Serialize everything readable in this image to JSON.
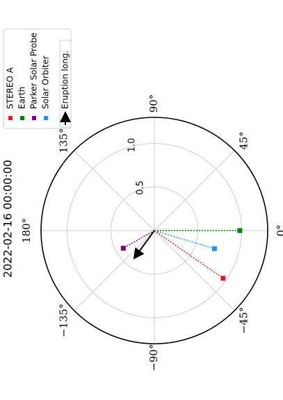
{
  "chart_data": {
    "type": "polar_scatter",
    "title": "2022-02-16 00:00:00",
    "rlim": [
      0,
      1.3
    ],
    "rticks": [
      0.5,
      {
        "value": 1,
        "label": "1.0"
      }
    ],
    "thetaticks": [
      {
        "value": 0,
        "label": "0°"
      },
      {
        "value": 45,
        "label": "45°"
      },
      {
        "value": 90,
        "label": "90°"
      },
      {
        "value": 135,
        "label": "135°"
      },
      {
        "value": 180,
        "label": "180°"
      },
      {
        "value": -135,
        "label": "−135°"
      },
      {
        "value": -90,
        "label": "−90°"
      },
      {
        "value": -45,
        "label": "−45°"
      }
    ],
    "grid": true,
    "series": [
      {
        "name": "STEREO A",
        "color": "#e41a1c",
        "r": [
          0.96
        ],
        "theta": [
          -34.8
        ]
      },
      {
        "name": "Earth",
        "color": "#008000",
        "r": [
          0.98
        ],
        "theta": [
          0
        ]
      },
      {
        "name": "Parker Solar Probe",
        "color": "#800080",
        "r": [
          0.41
        ],
        "theta": [
          -150.4
        ]
      },
      {
        "name": "Solar Orbiter",
        "color": "#1e90ff",
        "r": [
          0.72
        ],
        "theta": [
          -16.8
        ]
      }
    ],
    "arrow": {
      "name": "Eruption long.",
      "color": "#000000",
      "r": [
        0.38
      ],
      "theta": [
        -126
      ]
    }
  }
}
